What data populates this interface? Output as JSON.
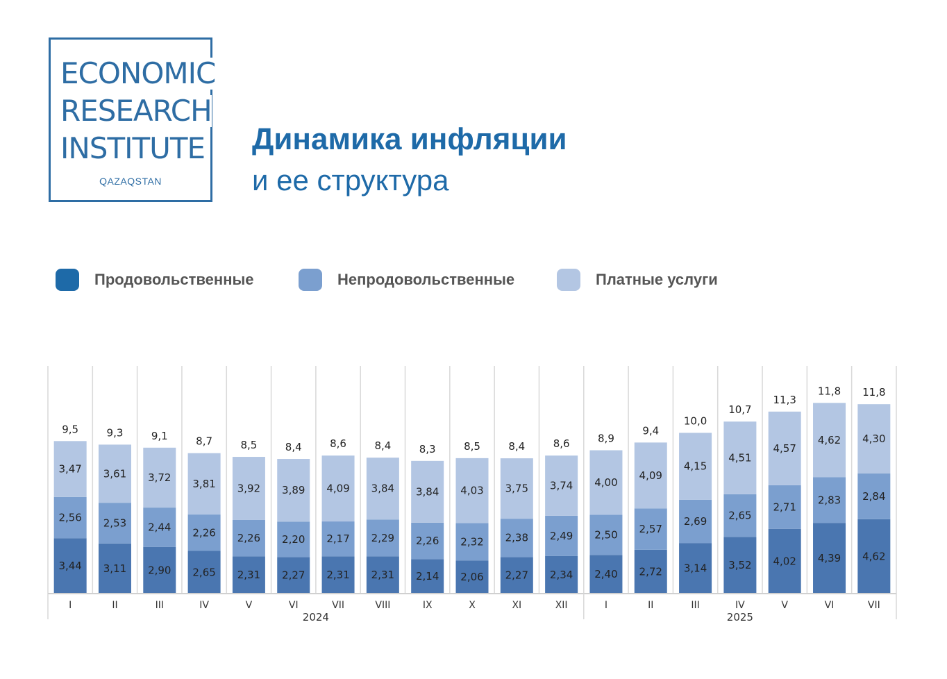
{
  "logo": {
    "line1": "ECONOMIC",
    "line2": "RESEARCH",
    "line3": "INSTITUTE",
    "sub": "QAZAQSTAN"
  },
  "title": {
    "line1": "Динамика инфляции",
    "line2": "и ее структура"
  },
  "colors": {
    "accent": "#1e6aa8",
    "food": "#4a76b0",
    "nonfood": "#7b9fcf",
    "services": "#b3c6e3"
  },
  "chart_data": {
    "type": "bar",
    "stacked": true,
    "categories": [
      "I",
      "II",
      "III",
      "IV",
      "V",
      "VI",
      "VII",
      "VIII",
      "IX",
      "X",
      "XI",
      "XII",
      "I",
      "II",
      "III",
      "IV",
      "V",
      "VI",
      "VII"
    ],
    "groups": [
      {
        "label": "2024",
        "count": 12
      },
      {
        "label": "2025",
        "count": 7
      }
    ],
    "series": [
      {
        "name": "Продовольственные",
        "color": "#4a76b0",
        "values": [
          3.44,
          3.11,
          2.9,
          2.65,
          2.31,
          2.27,
          2.31,
          2.31,
          2.14,
          2.06,
          2.27,
          2.34,
          2.4,
          2.72,
          3.14,
          3.52,
          4.02,
          4.39,
          4.62
        ],
        "labels": [
          "3,44",
          "3,11",
          "2,90",
          "2,65",
          "2,31",
          "2,27",
          "2,31",
          "2,31",
          "2,14",
          "2,06",
          "2,27",
          "2,34",
          "2,40",
          "2,72",
          "3,14",
          "3,52",
          "4,02",
          "4,39",
          "4,62"
        ]
      },
      {
        "name": "Непродовольственные",
        "color": "#7b9fcf",
        "values": [
          2.56,
          2.53,
          2.44,
          2.26,
          2.26,
          2.2,
          2.17,
          2.29,
          2.26,
          2.32,
          2.38,
          2.49,
          2.5,
          2.57,
          2.69,
          2.65,
          2.71,
          2.83,
          2.84
        ],
        "labels": [
          "2,56",
          "2,53",
          "2,44",
          "2,26",
          "2,26",
          "2,20",
          "2,17",
          "2,29",
          "2,26",
          "2,32",
          "2,38",
          "2,49",
          "2,50",
          "2,57",
          "2,69",
          "2,65",
          "2,71",
          "2,83",
          "2,84"
        ]
      },
      {
        "name": "Платные услуги",
        "color": "#b3c6e3",
        "values": [
          3.47,
          3.61,
          3.72,
          3.81,
          3.92,
          3.89,
          4.09,
          3.84,
          3.84,
          4.03,
          3.75,
          3.74,
          4.0,
          4.09,
          4.15,
          4.51,
          4.57,
          4.62,
          4.3
        ],
        "labels": [
          "3,47",
          "3,61",
          "3,72",
          "3,81",
          "3,92",
          "3,89",
          "4,09",
          "3,84",
          "3,84",
          "4,03",
          "3,75",
          "3,74",
          "4,00",
          "4,09",
          "4,15",
          "4,51",
          "4,57",
          "4,62",
          "4,30"
        ]
      }
    ],
    "totals": [
      9.5,
      9.3,
      9.1,
      8.7,
      8.5,
      8.4,
      8.6,
      8.4,
      8.3,
      8.5,
      8.4,
      8.6,
      8.9,
      9.4,
      10.0,
      10.7,
      11.3,
      11.8,
      11.8
    ],
    "total_labels": [
      "9,5",
      "9,3",
      "9,1",
      "8,7",
      "8,5",
      "8,4",
      "8,6",
      "8,4",
      "8,3",
      "8,5",
      "8,4",
      "8,6",
      "8,9",
      "9,4",
      "10,0",
      "10,7",
      "11,3",
      "11,8",
      "11,8"
    ],
    "ylim": [
      0,
      13
    ],
    "legend": "top-left",
    "grid": false
  }
}
